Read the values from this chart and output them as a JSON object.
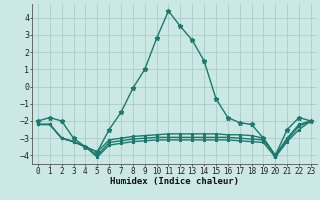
{
  "xlabel": "Humidex (Indice chaleur)",
  "xlim": [
    -0.5,
    23.5
  ],
  "ylim": [
    -4.5,
    4.8
  ],
  "background_color": "#cce8e4",
  "grid_color": "#aacccc",
  "line_color": "#1a7a6e",
  "line_width": 1.0,
  "marker": "*",
  "xticks": [
    0,
    1,
    2,
    3,
    4,
    5,
    6,
    7,
    8,
    9,
    10,
    11,
    12,
    13,
    14,
    15,
    16,
    17,
    18,
    19,
    20,
    21,
    22,
    23
  ],
  "yticks": [
    -4,
    -3,
    -2,
    -1,
    0,
    1,
    2,
    3,
    4
  ],
  "series": [
    {
      "x": [
        0,
        1,
        2,
        3,
        4,
        5,
        6,
        7,
        8,
        9,
        10,
        11,
        12,
        13,
        14,
        15,
        16,
        17,
        18,
        19,
        20,
        21,
        22,
        23
      ],
      "y": [
        -2.0,
        -1.8,
        -2.0,
        -3.0,
        -3.5,
        -3.8,
        -2.5,
        -1.5,
        -0.1,
        1.0,
        2.8,
        4.4,
        3.5,
        2.7,
        1.5,
        -0.7,
        -1.8,
        -2.1,
        -2.2,
        -3.0,
        -4.0,
        -2.5,
        -1.8,
        -2.0
      ],
      "marker_size": 3.5
    },
    {
      "x": [
        0,
        1,
        2,
        3,
        4,
        5,
        6,
        7,
        8,
        9,
        10,
        11,
        12,
        13,
        14,
        15,
        16,
        17,
        18,
        19,
        20,
        21,
        22,
        23
      ],
      "y": [
        -2.2,
        -2.2,
        -3.0,
        -3.2,
        -3.5,
        -3.8,
        -3.1,
        -3.0,
        -2.9,
        -2.85,
        -2.8,
        -2.75,
        -2.75,
        -2.75,
        -2.75,
        -2.75,
        -2.8,
        -2.8,
        -2.85,
        -3.0,
        -4.0,
        -3.0,
        -2.2,
        -2.0
      ],
      "marker_size": 2.0
    },
    {
      "x": [
        0,
        1,
        2,
        3,
        4,
        5,
        6,
        7,
        8,
        9,
        10,
        11,
        12,
        13,
        14,
        15,
        16,
        17,
        18,
        19,
        20,
        21,
        22,
        23
      ],
      "y": [
        -2.2,
        -2.2,
        -3.0,
        -3.2,
        -3.5,
        -4.0,
        -3.25,
        -3.15,
        -3.05,
        -3.0,
        -2.95,
        -2.95,
        -2.95,
        -2.95,
        -2.95,
        -2.95,
        -2.95,
        -3.0,
        -3.05,
        -3.1,
        -4.0,
        -3.1,
        -2.3,
        -2.0
      ],
      "marker_size": 2.0
    },
    {
      "x": [
        0,
        1,
        2,
        3,
        4,
        5,
        6,
        7,
        8,
        9,
        10,
        11,
        12,
        13,
        14,
        15,
        16,
        17,
        18,
        19,
        20,
        21,
        22,
        23
      ],
      "y": [
        -2.2,
        -2.2,
        -3.0,
        -3.2,
        -3.5,
        -4.1,
        -3.4,
        -3.3,
        -3.2,
        -3.15,
        -3.1,
        -3.1,
        -3.1,
        -3.1,
        -3.1,
        -3.1,
        -3.1,
        -3.15,
        -3.2,
        -3.25,
        -4.1,
        -3.2,
        -2.5,
        -2.0
      ],
      "marker_size": 2.0
    }
  ]
}
